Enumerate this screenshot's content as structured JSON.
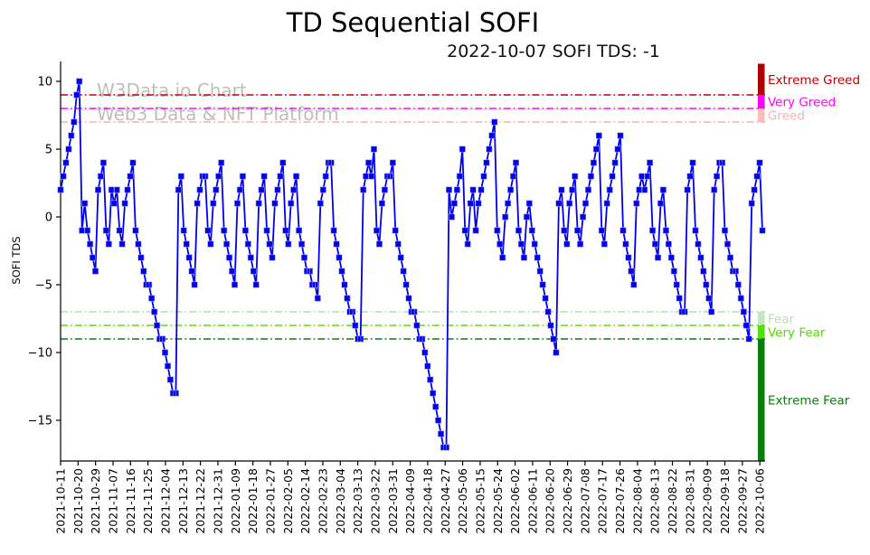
{
  "title": "TD Sequential SOFI",
  "subtitle": "2022-10-07 SOFI TDS: -1",
  "watermark": {
    "line1": "W3Data.io Chart",
    "line2": "Web3 Data & NFT Platform"
  },
  "chart_data": {
    "type": "line",
    "title": "TD Sequential SOFI",
    "subtitle": "2022-10-07 SOFI TDS: -1",
    "ylabel": "SOFI TDS",
    "xlabel": "",
    "grid": false,
    "legend": null,
    "line_color": "#0000ee",
    "marker": "square",
    "ylim": [
      -18,
      11.3
    ],
    "yticks": [
      10,
      5,
      0,
      -5,
      -10,
      -15
    ],
    "x_start_date": "2021-10-11",
    "x_end_date": "2022-10-07",
    "latest_value": -1,
    "xticklabels": [
      "2021-10-11",
      "2021-10-20",
      "2021-10-29",
      "2021-11-07",
      "2021-11-16",
      "2021-11-25",
      "2021-12-04",
      "2021-12-13",
      "2021-12-22",
      "2021-12-31",
      "2022-01-09",
      "2022-01-18",
      "2022-01-27",
      "2022-02-05",
      "2022-02-14",
      "2022-02-23",
      "2022-03-04",
      "2022-03-13",
      "2022-03-22",
      "2022-03-31",
      "2022-04-09",
      "2022-04-18",
      "2022-04-27",
      "2022-05-06",
      "2022-05-15",
      "2022-05-24",
      "2022-06-02",
      "2022-06-11",
      "2022-06-20",
      "2022-06-29",
      "2022-07-08",
      "2022-07-17",
      "2022-07-26",
      "2022-08-04",
      "2022-08-13",
      "2022-08-22",
      "2022-08-31",
      "2022-09-09",
      "2022-09-18",
      "2022-09-27",
      "2022-10-06"
    ],
    "values": [
      2,
      3,
      4,
      5,
      6,
      7,
      9,
      10,
      -1,
      1,
      -1,
      -2,
      -3,
      -4,
      2,
      3,
      4,
      -1,
      -2,
      2,
      1,
      2,
      -1,
      -2,
      1,
      2,
      3,
      4,
      -1,
      -2,
      -3,
      -4,
      -5,
      -5,
      -6,
      -7,
      -8,
      -9,
      -9,
      -10,
      -11,
      -12,
      -13,
      -13,
      2,
      3,
      -1,
      -2,
      -3,
      -4,
      -5,
      1,
      2,
      3,
      3,
      -1,
      -2,
      1,
      2,
      3,
      4,
      -1,
      -2,
      -3,
      -4,
      -5,
      1,
      2,
      3,
      -1,
      -2,
      -3,
      -4,
      -5,
      1,
      2,
      3,
      -1,
      -2,
      -3,
      1,
      2,
      3,
      4,
      -1,
      -2,
      1,
      2,
      3,
      -1,
      -2,
      -3,
      -4,
      -4,
      -5,
      -5,
      -6,
      1,
      2,
      3,
      4,
      4,
      -1,
      -2,
      -3,
      -4,
      -5,
      -6,
      -7,
      -7,
      -8,
      -9,
      -9,
      2,
      3,
      4,
      3,
      5,
      -1,
      -2,
      1,
      2,
      3,
      3,
      4,
      -1,
      -2,
      -3,
      -4,
      -5,
      -6,
      -7,
      -7,
      -8,
      -9,
      -9,
      -10,
      -11,
      -12,
      -13,
      -14,
      -15,
      -16,
      -17,
      -17,
      2,
      0,
      1,
      2,
      3,
      5,
      -1,
      -2,
      1,
      2,
      -1,
      1,
      2,
      3,
      4,
      5,
      6,
      7,
      -1,
      -2,
      -3,
      0,
      1,
      2,
      3,
      4,
      -1,
      -2,
      -3,
      0,
      1,
      -1,
      -2,
      -3,
      -4,
      -5,
      -6,
      -7,
      -8,
      -9,
      -10,
      1,
      2,
      -1,
      -2,
      1,
      2,
      3,
      -1,
      -2,
      0,
      1,
      2,
      3,
      4,
      5,
      6,
      -1,
      -2,
      1,
      2,
      3,
      4,
      5,
      6,
      -1,
      -2,
      -3,
      -4,
      -5,
      1,
      2,
      3,
      2,
      3,
      4,
      -1,
      -2,
      -3,
      1,
      2,
      -1,
      -2,
      -3,
      -4,
      -5,
      -6,
      -7,
      -7,
      2,
      3,
      4,
      -1,
      -2,
      -3,
      -4,
      -5,
      -6,
      -7,
      2,
      3,
      4,
      4,
      -1,
      -2,
      -3,
      -4,
      -4,
      -5,
      -6,
      -7,
      -8,
      -9,
      1,
      2,
      3,
      4,
      -1
    ],
    "thresholds": [
      {
        "label": "Extreme Greed",
        "value": 9,
        "line_color": "#c00000",
        "bar_color": "#b00000",
        "text_color": "#c00000",
        "band_top": 11.3,
        "band_bottom": 9,
        "opacity": 1
      },
      {
        "label": "Very Greed",
        "value": 8,
        "line_color": "#ff00ff",
        "bar_color": "#ff00ff",
        "text_color": "#ff00ff",
        "band_top": 9,
        "band_bottom": 8,
        "opacity": 1
      },
      {
        "label": "Greed",
        "value": 7,
        "line_color": "#ff9e9e",
        "bar_color": "#ffb3b3",
        "text_color": "#f2a5a5",
        "band_top": 8,
        "band_bottom": 7,
        "opacity": 0.85
      },
      {
        "label": "Fear",
        "value": -7,
        "line_color": "#a9d9a9",
        "bar_color": "#bfe3bf",
        "text_color": "#b5d6b5",
        "band_top": -7,
        "band_bottom": -8,
        "opacity": 0.9
      },
      {
        "label": "Very Fear",
        "value": -8,
        "line_color": "#5ddd00",
        "bar_color": "#55e000",
        "text_color": "#55d800",
        "band_top": -8,
        "band_bottom": -9,
        "opacity": 1
      },
      {
        "label": "Extreme Fear",
        "value": -9,
        "line_color": "#0a7c0a",
        "bar_color": "#0a7c0a",
        "text_color": "#0a7c0a",
        "band_top": -9,
        "band_bottom": -18,
        "opacity": 1
      }
    ]
  }
}
